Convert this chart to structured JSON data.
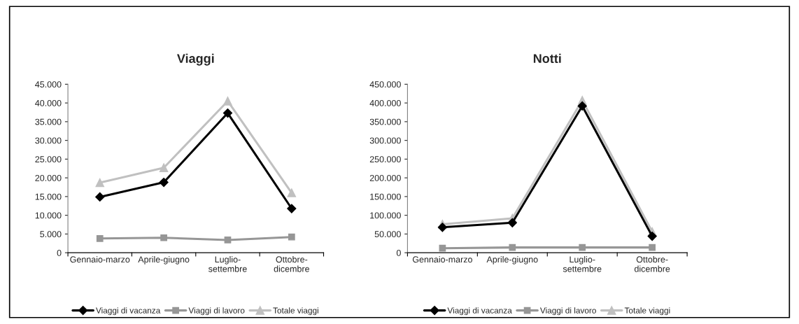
{
  "chart_data": [
    {
      "type": "line",
      "title": "Viaggi",
      "categories": [
        "Gennaio-marzo",
        "Aprile-giugno",
        "Luglio-\nsettembre",
        "Ottobre-\ndicembre"
      ],
      "series": [
        {
          "name": "Viaggi di vacanza",
          "color": "#000000",
          "marker": "diamond",
          "values": [
            14900,
            18800,
            37300,
            11800
          ]
        },
        {
          "name": "Viaggi di lavoro",
          "color": "#969696",
          "marker": "square",
          "values": [
            3800,
            4000,
            3400,
            4200
          ]
        },
        {
          "name": "Totale viaggi",
          "color": "#c0c0c0",
          "marker": "triangle",
          "values": [
            18700,
            22700,
            40500,
            16000
          ]
        }
      ],
      "ylim": [
        0,
        45000
      ],
      "yticks": [
        0,
        {
          "value": 5000,
          "label": "5.000"
        },
        {
          "value": 10000,
          "label": "10.000"
        },
        {
          "value": 15000,
          "label": "15.000"
        },
        {
          "value": 20000,
          "label": "20.000"
        },
        {
          "value": 25000,
          "label": "25.000"
        },
        {
          "value": 30000,
          "label": "30.000"
        },
        {
          "value": 35000,
          "label": "35.000"
        },
        {
          "value": 40000,
          "label": "40.000"
        },
        {
          "value": 45000,
          "label": "45.000"
        }
      ],
      "grid": false,
      "legend": "bottom"
    },
    {
      "type": "line",
      "title": "Notti",
      "categories": [
        "Gennaio-marzo",
        "Aprile-giugno",
        "Luglio-\nsettembre",
        "Ottobre-\ndicembre"
      ],
      "series": [
        {
          "name": "Viaggi di vacanza",
          "color": "#000000",
          "marker": "diamond",
          "values": [
            68000,
            80000,
            392000,
            44000
          ]
        },
        {
          "name": "Viaggi di lavoro",
          "color": "#969696",
          "marker": "square",
          "values": [
            12000,
            14000,
            14000,
            14000
          ]
        },
        {
          "name": "Totale viaggi",
          "color": "#c0c0c0",
          "marker": "triangle",
          "values": [
            76000,
            92000,
            407000,
            56000
          ]
        }
      ],
      "ylim": [
        0,
        450000
      ],
      "yticks": [
        0,
        {
          "value": 50000,
          "label": "50.000"
        },
        {
          "value": 100000,
          "label": "100.000"
        },
        {
          "value": 150000,
          "label": "150.000"
        },
        {
          "value": 200000,
          "label": "200.000"
        },
        {
          "value": 250000,
          "label": "250.000"
        },
        {
          "value": 300000,
          "label": "300.000"
        },
        {
          "value": 350000,
          "label": "350.000"
        },
        {
          "value": 400000,
          "label": "400.000"
        },
        {
          "value": 450000,
          "label": "450.000"
        }
      ],
      "grid": false,
      "legend": "bottom"
    }
  ]
}
